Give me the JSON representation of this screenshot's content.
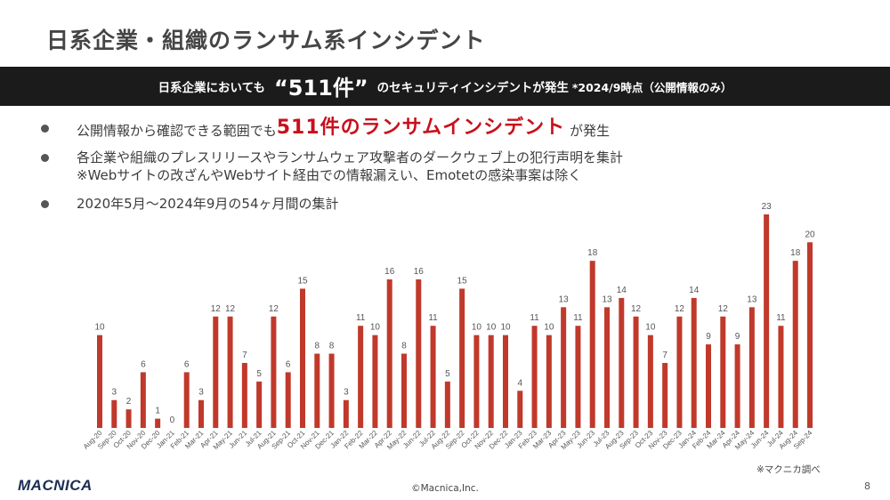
{
  "slide": {
    "title": "日系企業・組織のランサム系インシデント",
    "page_number": "8",
    "copyright": "©Macnica,Inc.",
    "logo_text": "MACNICA",
    "source_note": "※マクニカ調べ"
  },
  "banner": {
    "text_before": "日系企業においても",
    "highlight": "“511件”",
    "text_after": "のセキュリティインシデントが発生",
    "note": "*2024/9時点（公開情報のみ）"
  },
  "bullets": {
    "b1_pre": "公開情報から確認できる範囲でも",
    "b1_highlight": "511件のランサムインシデント",
    "b1_post": "が発生",
    "b2_line1": "各企業や組織のプレスリリースやランサムウェア攻撃者のダークウェブ上の犯行声明を集計",
    "b2_line2": "※Webサイトの改ざんやWebサイト経由での情報漏えい、Emotetの感染事案は除く",
    "b3": "2020年5月～2024年9月の54ヶ月間の集計"
  },
  "colors": {
    "bar": "#c0392b",
    "highlight": "#c8101c",
    "banner_bg": "#1b1b1b"
  },
  "chart_data": {
    "type": "bar",
    "categories": [
      "Aug-20",
      "Sep-20",
      "Oct-20",
      "Nov-20",
      "Dec-20",
      "Jan-21",
      "Feb-21",
      "Mar-21",
      "Apr-21",
      "May-21",
      "Jun-21",
      "Jul-21",
      "Aug-21",
      "Sep-21",
      "Oct-21",
      "Nov-21",
      "Dec-21",
      "Jan-22",
      "Feb-22",
      "Mar-22",
      "Apr-22",
      "May-22",
      "Jun-22",
      "Jul-22",
      "Aug-22",
      "Sep-22",
      "Oct-22",
      "Nov-22",
      "Dec-22",
      "Jan-23",
      "Feb-23",
      "Mar-23",
      "Apr-23",
      "May-23",
      "Jun-23",
      "Jul-23",
      "Aug-23",
      "Sep-23",
      "Oct-23",
      "Nov-23",
      "Dec-23",
      "Jan-24",
      "Feb-24",
      "Mar-24",
      "Apr-24",
      "May-24",
      "Jun-24",
      "Jul-24",
      "Aug-24",
      "Sep-24"
    ],
    "values": [
      10,
      3,
      2,
      6,
      1,
      0,
      6,
      3,
      12,
      12,
      7,
      5,
      12,
      6,
      15,
      8,
      8,
      3,
      11,
      10,
      16,
      8,
      16,
      11,
      5,
      15,
      10,
      10,
      10,
      4,
      11,
      10,
      13,
      11,
      18,
      13,
      14,
      12,
      10,
      7,
      12,
      14,
      9,
      12,
      9,
      13,
      23,
      11,
      18,
      20
    ],
    "title": "",
    "xlabel": "",
    "ylabel": "",
    "ylim": [
      0,
      23
    ],
    "grid": false,
    "data_labels": true
  }
}
